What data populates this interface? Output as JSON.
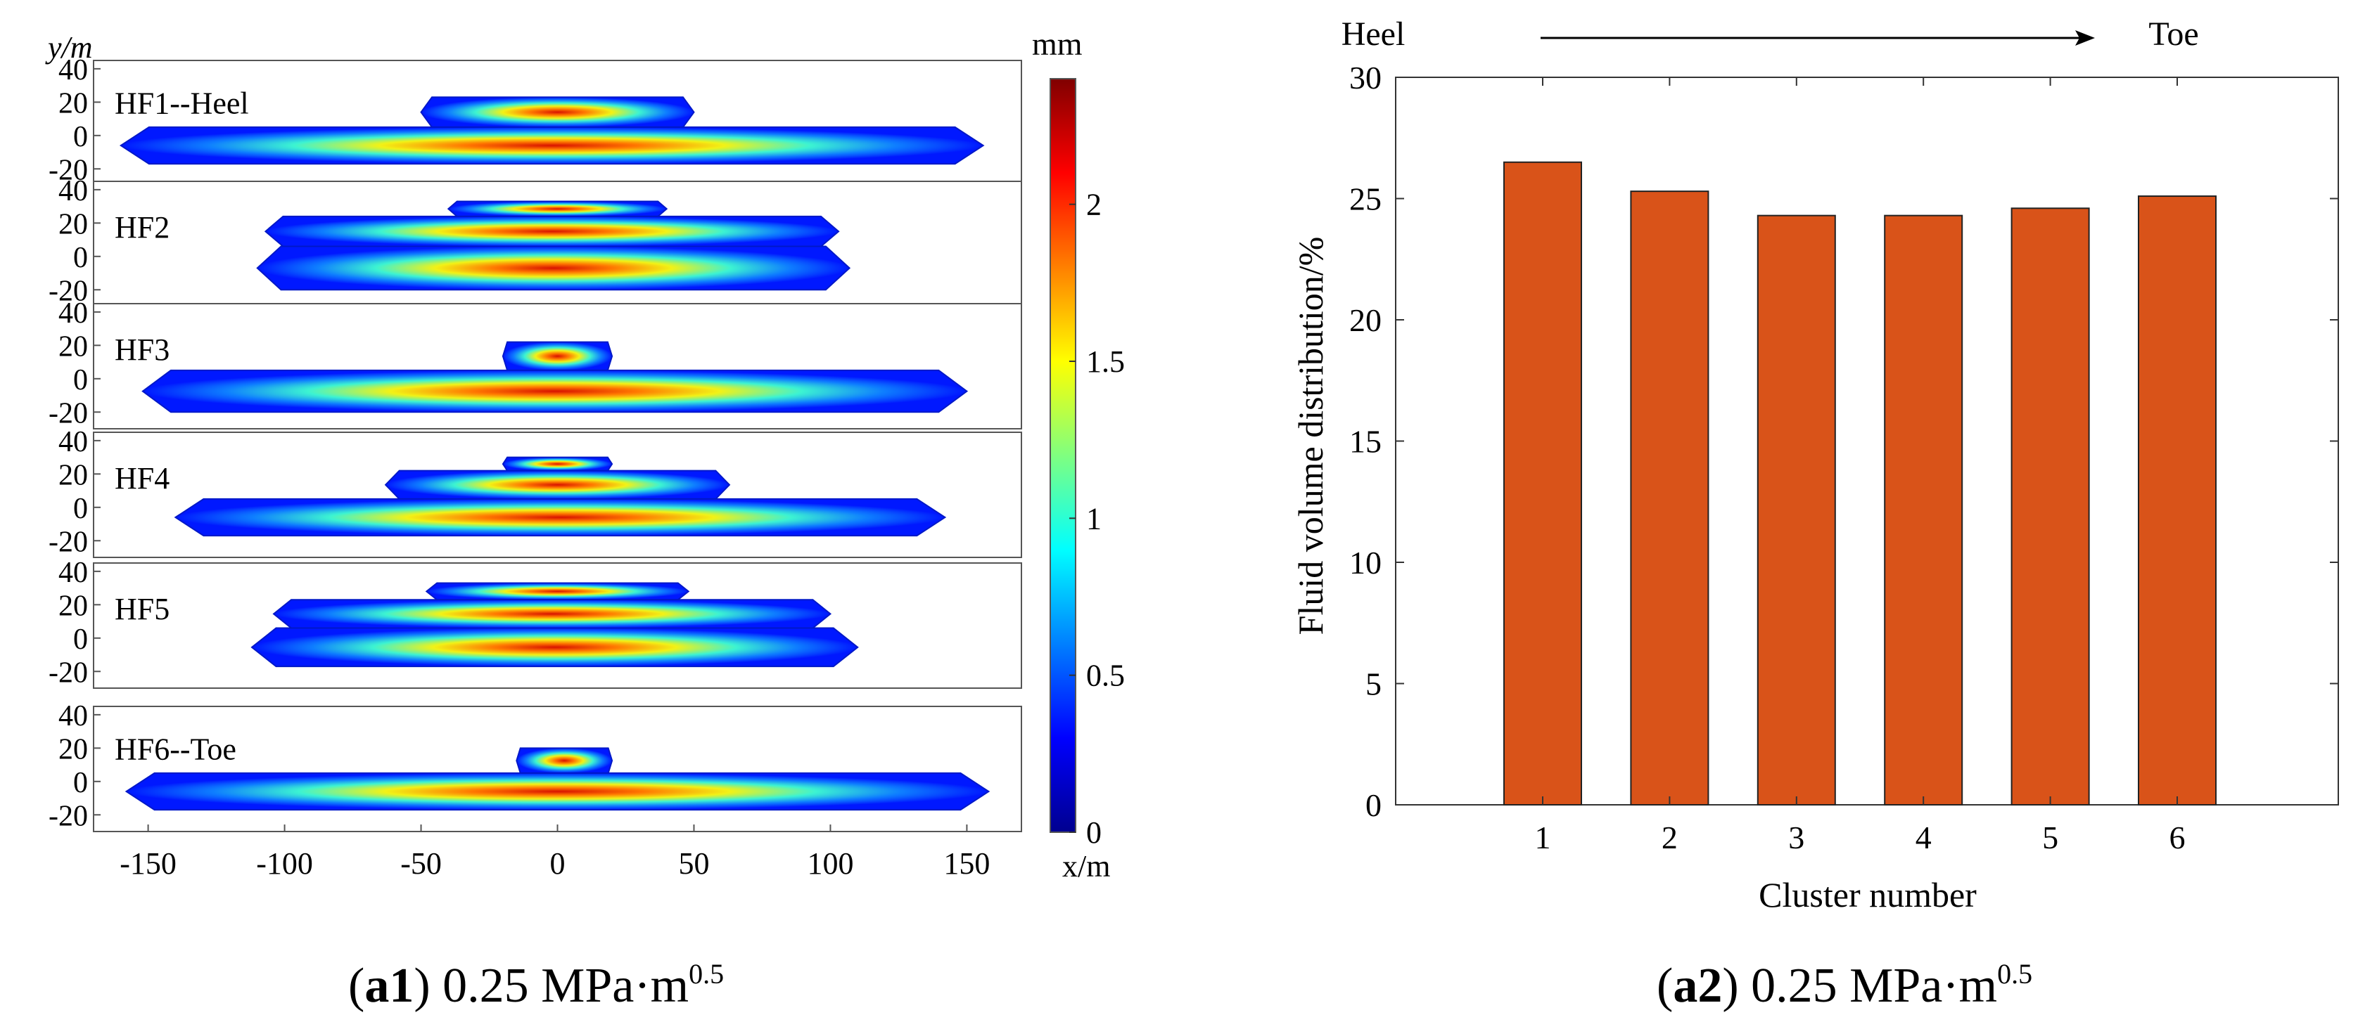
{
  "chart_data": [
    {
      "type": "heatmap",
      "subtype": "fracture-width-contour",
      "ylabel": "y/m",
      "xlabel": "x/m",
      "colorbar_label": "mm",
      "colorbar_ticks": [
        "0",
        "0.5",
        "1",
        "1.5",
        "2"
      ],
      "colorbar_range": [
        0,
        2.4
      ],
      "xticks": [
        -150,
        -100,
        -50,
        0,
        50,
        100,
        150
      ],
      "xlim": [
        -170,
        170
      ],
      "ylim": [
        -30,
        45
      ],
      "yticks": [
        40,
        20,
        0,
        -20
      ],
      "caption": {
        "label": "a1",
        "value": "0.25 MPa·m",
        "sup": "0.5"
      },
      "panels": [
        {
          "name": "HF1--Heel",
          "main_layer": {
            "x_range": [
              -160,
              156
            ],
            "y_range": [
              -17,
              5
            ]
          },
          "upper_layer": {
            "x_range": [
              -50,
              50
            ],
            "y_range": [
              5,
              23
            ]
          }
        },
        {
          "name": "HF2",
          "main_layer": {
            "x_range": [
              -110,
              107
            ],
            "y_range": [
              -20,
              6
            ]
          },
          "upper_layer": {
            "x_range": [
              -107,
              103
            ],
            "y_range": [
              6,
              24
            ]
          },
          "top_layer": {
            "x_range": [
              -40,
              40
            ],
            "y_range": [
              24,
              33
            ]
          }
        },
        {
          "name": "HF3",
          "main_layer": {
            "x_range": [
              -152,
              150
            ],
            "y_range": [
              -20,
              5
            ]
          },
          "upper_layer": {
            "x_range": [
              -20,
              20
            ],
            "y_range": [
              5,
              22
            ]
          }
        },
        {
          "name": "HF4",
          "main_layer": {
            "x_range": [
              -140,
              142
            ],
            "y_range": [
              -17,
              5
            ]
          },
          "upper_layer": {
            "x_range": [
              -63,
              63
            ],
            "y_range": [
              5,
              22
            ]
          },
          "top_layer": {
            "x_range": [
              -20,
              20
            ],
            "y_range": [
              22,
              30
            ]
          }
        },
        {
          "name": "HF5",
          "main_layer": {
            "x_range": [
              -112,
              110
            ],
            "y_range": [
              -17,
              6
            ]
          },
          "upper_layer": {
            "x_range": [
              -104,
              100
            ],
            "y_range": [
              6,
              23
            ]
          },
          "top_layer": {
            "x_range": [
              -48,
              48
            ],
            "y_range": [
              23,
              33
            ]
          }
        },
        {
          "name": "HF6--Toe",
          "main_layer": {
            "x_range": [
              -158,
              158
            ],
            "y_range": [
              -17,
              5
            ]
          },
          "upper_layer": {
            "x_range": [
              -15,
              20
            ],
            "y_range": [
              5,
              20
            ]
          }
        }
      ]
    },
    {
      "type": "bar",
      "categories": [
        "1",
        "2",
        "3",
        "4",
        "5",
        "6"
      ],
      "values": [
        26.5,
        25.3,
        24.3,
        24.3,
        24.6,
        25.1
      ],
      "ylabel": "Fluid volume distribution/%",
      "xlabel": "Cluster number",
      "ylim": [
        0,
        30
      ],
      "yticks": [
        0,
        5,
        10,
        15,
        20,
        25,
        30
      ],
      "bar_color": "#d95319",
      "annotation": {
        "start": "Heel",
        "end": "Toe"
      },
      "caption": {
        "label": "a2",
        "value": "0.25 MPa·m",
        "sup": "0.5"
      }
    }
  ]
}
